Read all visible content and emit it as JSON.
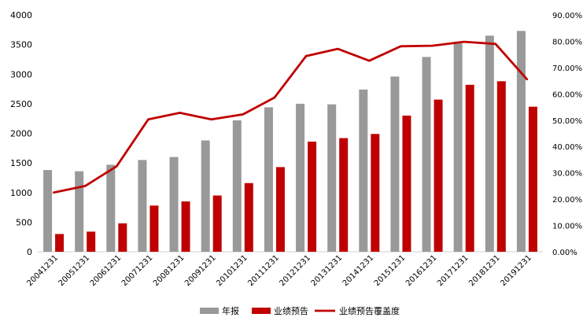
{
  "chart_data": {
    "type": "bar",
    "categories": [
      "20041231",
      "20051231",
      "20061231",
      "20071231",
      "20081231",
      "20091231",
      "20101231",
      "20111231",
      "20121231",
      "20131231",
      "20141231",
      "20151231",
      "20161231",
      "20171231",
      "20181231",
      "20191231"
    ],
    "series": [
      {
        "name": "年报",
        "type": "bar",
        "axis": "left",
        "color": "#999999",
        "values": [
          1380,
          1360,
          1470,
          1550,
          1600,
          1880,
          2220,
          2440,
          2500,
          2490,
          2740,
          2960,
          3290,
          3520,
          3650,
          3730
        ]
      },
      {
        "name": "业绩预告",
        "type": "bar",
        "axis": "left",
        "color": "#c00000",
        "values": [
          300,
          340,
          480,
          780,
          850,
          950,
          1160,
          1430,
          1860,
          1920,
          1990,
          2300,
          2570,
          2820,
          2880,
          2450
        ]
      },
      {
        "name": "业绩预告覆盖度",
        "type": "line",
        "axis": "right",
        "color": "#c00000",
        "values": [
          22.5,
          25.0,
          32.5,
          50.3,
          52.8,
          50.3,
          52.2,
          58.6,
          74.4,
          77.1,
          72.6,
          78.1,
          78.3,
          79.8,
          79.0,
          65.5
        ]
      }
    ],
    "y_left": {
      "min": 0,
      "max": 4000,
      "step": 500,
      "ticks": [
        "0",
        "500",
        "1000",
        "1500",
        "2000",
        "2500",
        "3000",
        "3500",
        "4000"
      ]
    },
    "y_right": {
      "min": 0,
      "max": 90,
      "step": 10,
      "ticks": [
        "0.00%",
        "10.00%",
        "20.00%",
        "30.00%",
        "40.00%",
        "50.00%",
        "60.00%",
        "70.00%",
        "80.00%",
        "90.00%"
      ]
    },
    "grid": false,
    "legend_position": "bottom",
    "title": "",
    "xlabel": "",
    "ylabel": ""
  }
}
